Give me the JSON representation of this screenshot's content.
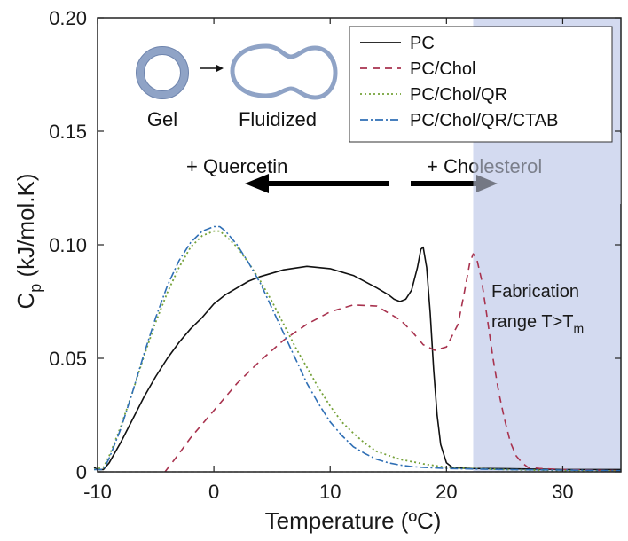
{
  "chart_data": {
    "type": "line",
    "xlabel": "Temperature (ºC)",
    "ylabel_main": "C",
    "ylabel_sub": "p",
    "ylabel_rest": " (kJ/mol.K)",
    "xlim": [
      -10,
      35
    ],
    "ylim": [
      0,
      0.2
    ],
    "xticks": [
      -10,
      0,
      10,
      20,
      30
    ],
    "xtick_labels": [
      "-10",
      "0",
      "10",
      "20",
      "30"
    ],
    "yticks": [
      0,
      0.05,
      0.1,
      0.15,
      0.2
    ],
    "ytick_labels": [
      "0",
      "0.05",
      "0.10",
      "0.15",
      "0.20"
    ],
    "baseline": 0,
    "shaded_region": {
      "x_start": 22.3,
      "x_end": 35,
      "color": "#d3daf0",
      "label_line1": "Fabrication",
      "label_line2": "range T>T",
      "label_sub": "m"
    },
    "annotations": {
      "quercetin": "+ Quercetin",
      "cholesterol": "+ Cholesterol",
      "gel": "Gel",
      "fluidized": "Fluidized"
    },
    "series": [
      {
        "name": "PC",
        "color": "#111111",
        "dash": "solid",
        "x": [
          -10.3,
          -10,
          -9.5,
          -9,
          -8,
          -7,
          -6,
          -5,
          -4,
          -3,
          -2,
          -1,
          0,
          1,
          2,
          3,
          4,
          6,
          8,
          10,
          12,
          14,
          15,
          15.5,
          16,
          16.5,
          17,
          17.5,
          17.8,
          18,
          18.3,
          18.6,
          18.9,
          19.2,
          19.5,
          20,
          20.5,
          21,
          22,
          25,
          30,
          35
        ],
        "y": [
          0.002,
          0.001,
          0.001,
          0.004,
          0.013,
          0.023,
          0.033,
          0.042,
          0.05,
          0.057,
          0.063,
          0.068,
          0.074,
          0.078,
          0.081,
          0.084,
          0.086,
          0.089,
          0.0905,
          0.0895,
          0.0865,
          0.081,
          0.078,
          0.076,
          0.075,
          0.076,
          0.08,
          0.09,
          0.098,
          0.099,
          0.09,
          0.07,
          0.045,
          0.025,
          0.012,
          0.004,
          0.002,
          0.0017,
          0.0015,
          0.0014,
          0.001,
          0.001
        ]
      },
      {
        "name": "PC/Chol",
        "color": "#a8324e",
        "dash": "8,6",
        "x": [
          -4.2,
          -3,
          -2,
          0,
          2,
          4,
          6,
          8,
          10,
          12,
          14,
          16,
          17,
          18,
          19,
          20,
          21,
          21.5,
          22,
          22.3,
          22.6,
          23,
          23.5,
          24,
          24.5,
          25,
          25.5,
          26,
          26.5,
          27,
          28,
          30,
          35
        ],
        "y": [
          0,
          0.008,
          0.015,
          0.027,
          0.039,
          0.049,
          0.058,
          0.065,
          0.0705,
          0.0735,
          0.073,
          0.067,
          0.062,
          0.056,
          0.0535,
          0.055,
          0.065,
          0.078,
          0.092,
          0.096,
          0.094,
          0.085,
          0.068,
          0.05,
          0.035,
          0.023,
          0.013,
          0.007,
          0.004,
          0.002,
          0.0015,
          0.001,
          0.0005
        ]
      },
      {
        "name": "PC/Chol/QR",
        "color": "#76a23a",
        "dash": "2,3",
        "x": [
          -10.3,
          -9.5,
          -9,
          -8,
          -7,
          -6,
          -5,
          -4,
          -3,
          -2,
          -1,
          0,
          0.5,
          1,
          2,
          3,
          4,
          5,
          6,
          7,
          8,
          9,
          10,
          11,
          12,
          13,
          14,
          16,
          18,
          20,
          22,
          25,
          30,
          35
        ],
        "y": [
          0.001,
          0.002,
          0.007,
          0.02,
          0.035,
          0.051,
          0.066,
          0.079,
          0.09,
          0.099,
          0.104,
          0.106,
          0.106,
          0.104,
          0.099,
          0.092,
          0.084,
          0.075,
          0.065,
          0.055,
          0.046,
          0.037,
          0.029,
          0.022,
          0.017,
          0.0125,
          0.009,
          0.0055,
          0.0035,
          0.002,
          0.0015,
          0.001,
          0.0005,
          0.0003
        ]
      },
      {
        "name": "PC/Chol/QR/CTAB",
        "color": "#2f6fb5",
        "dash": "9,3,2,3",
        "x": [
          -10.3,
          -9.5,
          -9,
          -8,
          -7,
          -6,
          -5,
          -4,
          -3,
          -2,
          -1,
          0,
          0.5,
          1,
          2,
          3,
          4,
          5,
          6,
          7,
          8,
          9,
          10,
          11,
          12,
          13,
          14,
          15,
          16,
          17,
          18,
          20,
          22,
          25,
          30,
          35
        ],
        "y": [
          0.001,
          0.001,
          0.006,
          0.019,
          0.035,
          0.052,
          0.068,
          0.082,
          0.093,
          0.101,
          0.106,
          0.108,
          0.108,
          0.106,
          0.1,
          0.092,
          0.083,
          0.072,
          0.061,
          0.05,
          0.039,
          0.03,
          0.022,
          0.016,
          0.011,
          0.008,
          0.0055,
          0.004,
          0.003,
          0.0023,
          0.002,
          0.0015,
          0.0013,
          0.001,
          0.0008,
          0.0005
        ]
      }
    ]
  }
}
